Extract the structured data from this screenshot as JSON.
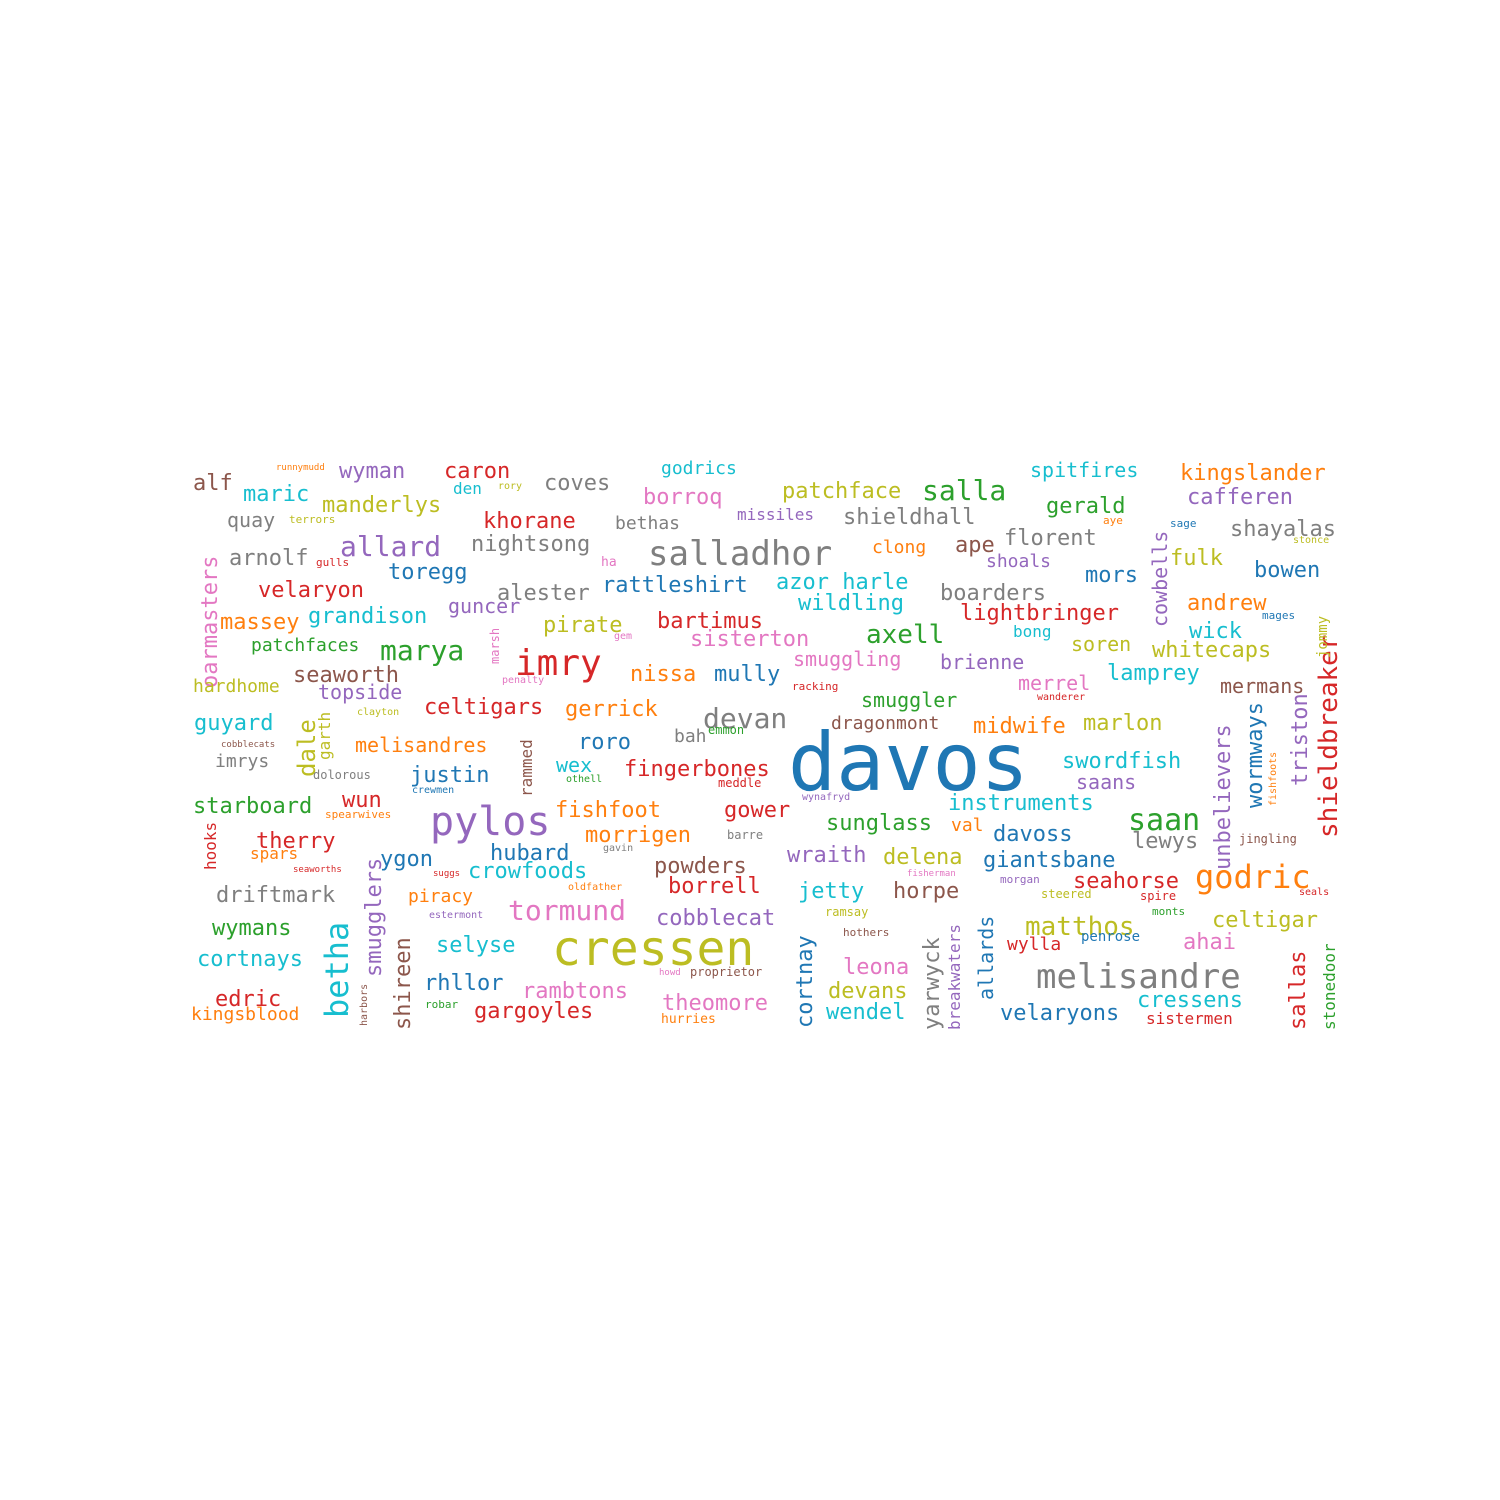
{
  "palette": {
    "blue": "#1f77b4",
    "orange": "#ff7f0e",
    "green": "#2ca02c",
    "red": "#d62728",
    "purple": "#9467bd",
    "brown": "#8c564b",
    "pink": "#e377c2",
    "gray": "#7f7f7f",
    "olive": "#bcbd22",
    "cyan": "#17becf"
  },
  "words": [
    {
      "text": "davos",
      "color": "blue",
      "weight": 100
    },
    {
      "text": "cressen",
      "color": "olive",
      "weight": 60
    },
    {
      "text": "melisandre",
      "color": "gray",
      "weight": 45
    },
    {
      "text": "pylos",
      "color": "purple",
      "weight": 50
    },
    {
      "text": "salladhor",
      "color": "gray",
      "weight": 42
    },
    {
      "text": "imry",
      "color": "red",
      "weight": 40
    },
    {
      "text": "godric",
      "color": "orange",
      "weight": 38
    },
    {
      "text": "saan",
      "color": "green",
      "weight": 36
    },
    {
      "text": "betha",
      "color": "cyan",
      "weight": 36
    },
    {
      "text": "shieldbreaker",
      "color": "red",
      "weight": 28
    },
    {
      "text": "salla",
      "color": "green",
      "weight": 32
    },
    {
      "text": "tormund",
      "color": "pink",
      "weight": 32
    },
    {
      "text": "marya",
      "color": "green",
      "weight": 32
    },
    {
      "text": "allard",
      "color": "purple",
      "weight": 32
    },
    {
      "text": "devan",
      "color": "gray",
      "weight": 32
    },
    {
      "text": "matthos",
      "color": "olive",
      "weight": 30
    },
    {
      "text": "patchface",
      "color": "olive",
      "weight": 26
    },
    {
      "text": "kingslander",
      "color": "orange",
      "weight": 26
    },
    {
      "text": "fishfoot",
      "color": "orange",
      "weight": 26
    },
    {
      "text": "bartimus",
      "color": "red",
      "weight": 26
    },
    {
      "text": "axell",
      "color": "green",
      "weight": 28
    },
    {
      "text": "morrigen",
      "color": "orange",
      "weight": 26
    },
    {
      "text": "justin",
      "color": "blue",
      "weight": 26
    },
    {
      "text": "hubard",
      "color": "blue",
      "weight": 26
    },
    {
      "text": "fingerbones",
      "color": "red",
      "weight": 26
    },
    {
      "text": "instruments",
      "color": "cyan",
      "weight": 26
    },
    {
      "text": "wildling",
      "color": "cyan",
      "weight": 26
    },
    {
      "text": "velaryons",
      "color": "blue",
      "weight": 26
    },
    {
      "text": "rattleshirt",
      "color": "blue",
      "weight": 26
    },
    {
      "text": "caron",
      "color": "red",
      "weight": 26
    },
    {
      "text": "khorane",
      "color": "red",
      "weight": 26
    },
    {
      "text": "lightbringer",
      "color": "red",
      "weight": 26
    },
    {
      "text": "andrew",
      "color": "orange",
      "weight": 26
    },
    {
      "text": "gerald",
      "color": "green",
      "weight": 26
    },
    {
      "text": "velaryon",
      "color": "red",
      "weight": 26
    },
    {
      "text": "driftmark",
      "color": "gray",
      "weight": 26
    },
    {
      "text": "cortnays",
      "color": "cyan",
      "weight": 26
    },
    {
      "text": "wymans",
      "color": "green",
      "weight": 26
    },
    {
      "text": "edric",
      "color": "red",
      "weight": 26
    },
    {
      "text": "starboard",
      "color": "green",
      "weight": 26
    },
    {
      "text": "therry",
      "color": "red",
      "weight": 26
    },
    {
      "text": "guyard",
      "color": "cyan",
      "weight": 26
    },
    {
      "text": "massey",
      "color": "orange",
      "weight": 26
    },
    {
      "text": "grandison",
      "color": "cyan",
      "weight": 26
    },
    {
      "text": "manderlys",
      "color": "olive",
      "weight": 26
    },
    {
      "text": "maric",
      "color": "cyan",
      "weight": 26
    },
    {
      "text": "wyman",
      "color": "purple",
      "weight": 26
    },
    {
      "text": "alf",
      "color": "brown",
      "weight": 26
    },
    {
      "text": "arnolf",
      "color": "gray",
      "weight": 26
    },
    {
      "text": "toregg",
      "color": "blue",
      "weight": 26
    },
    {
      "text": "seaworth",
      "color": "brown",
      "weight": 26
    },
    {
      "text": "melisandres",
      "color": "orange",
      "weight": 24
    },
    {
      "text": "celtigars",
      "color": "red",
      "weight": 26
    },
    {
      "text": "gerrick",
      "color": "orange",
      "weight": 26
    },
    {
      "text": "roro",
      "color": "blue",
      "weight": 26
    },
    {
      "text": "nissa",
      "color": "orange",
      "weight": 26
    },
    {
      "text": "mully",
      "color": "blue",
      "weight": 26
    },
    {
      "text": "wex",
      "color": "cyan",
      "weight": 24
    },
    {
      "text": "pirate",
      "color": "olive",
      "weight": 26
    },
    {
      "text": "guncer",
      "color": "purple",
      "weight": 24
    },
    {
      "text": "alester",
      "color": "gray",
      "weight": 26
    },
    {
      "text": "nightsong",
      "color": "gray",
      "weight": 26
    },
    {
      "text": "borroq",
      "color": "pink",
      "weight": 26
    },
    {
      "text": "coves",
      "color": "gray",
      "weight": 26
    },
    {
      "text": "shieldhall",
      "color": "gray",
      "weight": 26
    },
    {
      "text": "florent",
      "color": "gray",
      "weight": 26
    },
    {
      "text": "ape",
      "color": "brown",
      "weight": 26
    },
    {
      "text": "boarders",
      "color": "gray",
      "weight": 26
    },
    {
      "text": "azor harle",
      "color": "cyan",
      "weight": 26
    },
    {
      "text": "sisterton",
      "color": "pink",
      "weight": 26
    },
    {
      "text": "smuggling",
      "color": "pink",
      "weight": 24
    },
    {
      "text": "brienne",
      "color": "purple",
      "weight": 24
    },
    {
      "text": "smuggler",
      "color": "green",
      "weight": 24
    },
    {
      "text": "merrel",
      "color": "pink",
      "weight": 24
    },
    {
      "text": "midwife",
      "color": "orange",
      "weight": 24
    },
    {
      "text": "marlon",
      "color": "olive",
      "weight": 24
    },
    {
      "text": "swordfish",
      "color": "cyan",
      "weight": 24
    },
    {
      "text": "saans",
      "color": "purple",
      "weight": 24
    },
    {
      "text": "lamprey",
      "color": "cyan",
      "weight": 24
    },
    {
      "text": "mermans",
      "color": "brown",
      "weight": 24
    },
    {
      "text": "whitecaps",
      "color": "olive",
      "weight": 24
    },
    {
      "text": "soren",
      "color": "olive",
      "weight": 24
    },
    {
      "text": "wick",
      "color": "cyan",
      "weight": 24
    },
    {
      "text": "mors",
      "color": "blue",
      "weight": 24
    },
    {
      "text": "bowen",
      "color": "blue",
      "weight": 24
    },
    {
      "text": "fulk",
      "color": "olive",
      "weight": 24
    },
    {
      "text": "shayalas",
      "color": "gray",
      "weight": 24
    },
    {
      "text": "cafferen",
      "color": "purple",
      "weight": 24
    },
    {
      "text": "spitfires",
      "color": "cyan",
      "weight": 24
    },
    {
      "text": "godrics",
      "color": "cyan",
      "weight": 20
    },
    {
      "text": "clong",
      "color": "orange",
      "weight": 20
    },
    {
      "text": "shoals",
      "color": "purple",
      "weight": 20
    },
    {
      "text": "bong",
      "color": "cyan",
      "weight": 18
    },
    {
      "text": "missiles",
      "color": "purple",
      "weight": 18
    },
    {
      "text": "bethas",
      "color": "gray",
      "weight": 18
    },
    {
      "text": "quay",
      "color": "gray",
      "weight": 20
    },
    {
      "text": "den",
      "color": "cyan",
      "weight": 18
    },
    {
      "text": "runnymudd",
      "color": "orange",
      "weight": 10
    },
    {
      "text": "rory",
      "color": "olive",
      "weight": 10
    },
    {
      "text": "terrors",
      "color": "olive",
      "weight": 10
    },
    {
      "text": "aye",
      "color": "orange",
      "weight": 10
    },
    {
      "text": "sage",
      "color": "blue",
      "weight": 10
    },
    {
      "text": "stonce",
      "color": "olive",
      "weight": 10
    },
    {
      "text": "gulls",
      "color": "red",
      "weight": 10
    },
    {
      "text": "ha",
      "color": "pink",
      "weight": 12
    },
    {
      "text": "gem",
      "color": "pink",
      "weight": 10
    },
    {
      "text": "mages",
      "color": "blue",
      "weight": 10
    },
    {
      "text": "oarmasters",
      "color": "pink",
      "weight": 24
    },
    {
      "text": "patchfaces",
      "color": "green",
      "weight": 20
    },
    {
      "text": "hardhome",
      "color": "olive",
      "weight": 18
    },
    {
      "text": "topside",
      "color": "purple",
      "weight": 20
    },
    {
      "text": "marsh",
      "color": "pink",
      "weight": 12
    },
    {
      "text": "penalty",
      "color": "pink",
      "weight": 10
    },
    {
      "text": "racking",
      "color": "red",
      "weight": 10
    },
    {
      "text": "dale",
      "color": "olive",
      "weight": 26
    },
    {
      "text": "garth",
      "color": "olive",
      "weight": 18
    },
    {
      "text": "clayton",
      "color": "olive",
      "weight": 10
    },
    {
      "text": "cobblecats",
      "color": "brown",
      "weight": 10
    },
    {
      "text": "imrys",
      "color": "gray",
      "weight": 18
    },
    {
      "text": "dolorous",
      "color": "gray",
      "weight": 12
    },
    {
      "text": "crewmen",
      "color": "blue",
      "weight": 10
    },
    {
      "text": "rammed",
      "color": "brown",
      "weight": 18
    },
    {
      "text": "bah",
      "color": "gray",
      "weight": 18
    },
    {
      "text": "emmon",
      "color": "green",
      "weight": 12
    },
    {
      "text": "dragonmont",
      "color": "brown",
      "weight": 18
    },
    {
      "text": "othell",
      "color": "green",
      "weight": 10
    },
    {
      "text": "meddle",
      "color": "red",
      "weight": 12
    },
    {
      "text": "wynafryd",
      "color": "purple",
      "weight": 10
    },
    {
      "text": "wanderer",
      "color": "red",
      "weight": 10
    },
    {
      "text": "spearwives",
      "color": "orange",
      "weight": 10
    },
    {
      "text": "wun",
      "color": "red",
      "weight": 24
    },
    {
      "text": "hooks",
      "color": "red",
      "weight": 18
    },
    {
      "text": "spars",
      "color": "orange",
      "weight": 16
    },
    {
      "text": "seaworths",
      "color": "red",
      "weight": 10
    },
    {
      "text": "ygon",
      "color": "blue",
      "weight": 24
    },
    {
      "text": "smugglers",
      "color": "purple",
      "weight": 24
    },
    {
      "text": "suggs",
      "color": "red",
      "weight": 10
    },
    {
      "text": "crowfoods",
      "color": "cyan",
      "weight": 24
    },
    {
      "text": "gavin",
      "color": "gray",
      "weight": 10
    },
    {
      "text": "barre",
      "color": "gray",
      "weight": 12
    },
    {
      "text": "gower",
      "color": "red",
      "weight": 24
    },
    {
      "text": "powders",
      "color": "brown",
      "weight": 24
    },
    {
      "text": "borrell",
      "color": "red",
      "weight": 24
    },
    {
      "text": "oldfather",
      "color": "orange",
      "weight": 10
    },
    {
      "text": "piracy",
      "color": "orange",
      "weight": 20
    },
    {
      "text": "estermont",
      "color": "purple",
      "weight": 10
    },
    {
      "text": "shireen",
      "color": "brown",
      "weight": 24
    },
    {
      "text": "harbors",
      "color": "brown",
      "weight": 10
    },
    {
      "text": "selyse",
      "color": "cyan",
      "weight": 24
    },
    {
      "text": "rhllor",
      "color": "blue",
      "weight": 24
    },
    {
      "text": "robar",
      "color": "green",
      "weight": 10
    },
    {
      "text": "kingsblood",
      "color": "orange",
      "weight": 20
    },
    {
      "text": "rambtons",
      "color": "pink",
      "weight": 24
    },
    {
      "text": "gargoyles",
      "color": "red",
      "weight": 24
    },
    {
      "text": "howd",
      "color": "pink",
      "weight": 10
    },
    {
      "text": "proprietor",
      "color": "brown",
      "weight": 12
    },
    {
      "text": "hurries",
      "color": "orange",
      "weight": 14
    },
    {
      "text": "theomore",
      "color": "pink",
      "weight": 24
    },
    {
      "text": "cobblecat",
      "color": "purple",
      "weight": 24
    },
    {
      "text": "sunglass",
      "color": "green",
      "weight": 24
    },
    {
      "text": "wraith",
      "color": "purple",
      "weight": 24
    },
    {
      "text": "jetty",
      "color": "cyan",
      "weight": 24
    },
    {
      "text": "cortnay",
      "color": "blue",
      "weight": 24
    },
    {
      "text": "wendel",
      "color": "cyan",
      "weight": 24
    },
    {
      "text": "devans",
      "color": "olive",
      "weight": 24
    },
    {
      "text": "leona",
      "color": "pink",
      "weight": 24
    },
    {
      "text": "ramsay",
      "color": "olive",
      "weight": 12
    },
    {
      "text": "hothers",
      "color": "brown",
      "weight": 10
    },
    {
      "text": "delena",
      "color": "olive",
      "weight": 24
    },
    {
      "text": "horpe",
      "color": "brown",
      "weight": 24
    },
    {
      "text": "yarwyck",
      "color": "gray",
      "weight": 24
    },
    {
      "text": "breakwaters",
      "color": "purple",
      "weight": 18
    },
    {
      "text": "fisherman",
      "color": "pink",
      "weight": 10
    },
    {
      "text": "allards",
      "color": "blue",
      "weight": 24
    },
    {
      "text": "davoss",
      "color": "blue",
      "weight": 24
    },
    {
      "text": "giantsbane",
      "color": "blue",
      "weight": 24
    },
    {
      "text": "morgan",
      "color": "purple",
      "weight": 12
    },
    {
      "text": "steered",
      "color": "olive",
      "weight": 12
    },
    {
      "text": "wylla",
      "color": "red",
      "weight": 18
    },
    {
      "text": "penrose",
      "color": "blue",
      "weight": 14
    },
    {
      "text": "monts",
      "color": "green",
      "weight": 12
    },
    {
      "text": "seahorse",
      "color": "red",
      "weight": 24
    },
    {
      "text": "spire",
      "color": "red",
      "weight": 12
    },
    {
      "text": "cressens",
      "color": "cyan",
      "weight": 24
    },
    {
      "text": "sistermen",
      "color": "red",
      "weight": 18
    },
    {
      "text": "ahai",
      "color": "pink",
      "weight": 24
    },
    {
      "text": "celtigar",
      "color": "olive",
      "weight": 24
    },
    {
      "text": "lewys",
      "color": "gray",
      "weight": 24
    },
    {
      "text": "unbelievers",
      "color": "purple",
      "weight": 24
    },
    {
      "text": "wormways",
      "color": "blue",
      "weight": 24
    },
    {
      "text": "triston",
      "color": "purple",
      "weight": 24
    },
    {
      "text": "fishfoots",
      "color": "orange",
      "weight": 10
    },
    {
      "text": "jingling",
      "color": "brown",
      "weight": 12
    },
    {
      "text": "sallas",
      "color": "red",
      "weight": 24
    },
    {
      "text": "stonedoor",
      "color": "green",
      "weight": 18
    },
    {
      "text": "seals",
      "color": "red",
      "weight": 10
    },
    {
      "text": "val",
      "color": "orange",
      "weight": 18
    },
    {
      "text": "cowbells",
      "color": "purple",
      "weight": 22
    },
    {
      "text": "jommy",
      "color": "olive",
      "weight": 14
    }
  ]
}
